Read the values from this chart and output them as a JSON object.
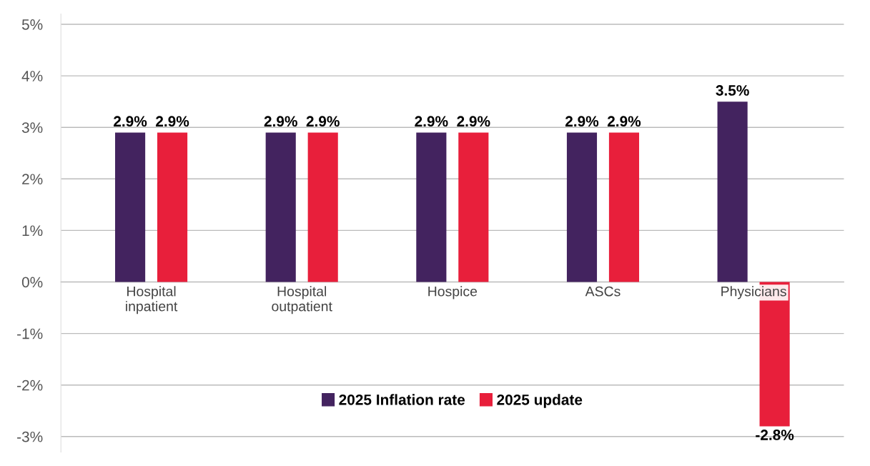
{
  "chart_data": {
    "type": "bar",
    "categories": [
      "Hospital\ninpatient",
      "Hospital\noutpatient",
      "Hospice",
      "ASCs",
      "Physicians"
    ],
    "series": [
      {
        "name": "2025 Inflation rate",
        "color": "#43235f",
        "values": [
          2.9,
          2.9,
          2.9,
          2.9,
          3.5
        ],
        "value_labels": [
          "2.9%",
          "2.9%",
          "2.9%",
          "2.9%",
          "3.5%"
        ]
      },
      {
        "name": "2025 update",
        "color": "#e81f3b",
        "values": [
          2.9,
          2.9,
          2.9,
          2.9,
          -2.8
        ],
        "value_labels": [
          "2.9%",
          "2.9%",
          "2.9%",
          "2.9%",
          "-2.8%"
        ]
      }
    ],
    "ylim": [
      -3.3,
      5.2
    ],
    "yticks": [
      {
        "value": -3,
        "label": "-3%"
      },
      {
        "value": -2,
        "label": "-2%"
      },
      {
        "value": -1,
        "label": "-1%"
      },
      {
        "value": 0,
        "label": "0%"
      },
      {
        "value": 1,
        "label": "1%"
      },
      {
        "value": 2,
        "label": "2%"
      },
      {
        "value": 3,
        "label": "3%"
      },
      {
        "value": 4,
        "label": "4%"
      },
      {
        "value": 5,
        "label": "5%"
      }
    ],
    "grid": "y",
    "legend": "bottom"
  }
}
